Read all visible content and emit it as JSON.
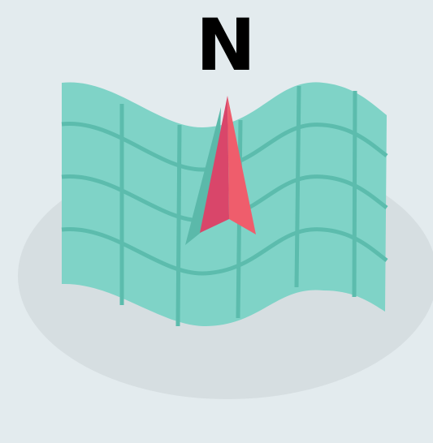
{
  "compass": {
    "north_label": "N",
    "icon": "north-arrow-icon"
  },
  "map": {
    "icon": "folded-map-icon"
  },
  "colors": {
    "background": "#e3ebee",
    "shadow": "#d6dee1",
    "map_fill": "#7fd3c7",
    "map_grid": "#5cbcad",
    "arrow_shadow": "#5bb9aa",
    "arrow_left": "#d9466a",
    "arrow_right": "#ef5d6c",
    "north_text": "#000000"
  }
}
